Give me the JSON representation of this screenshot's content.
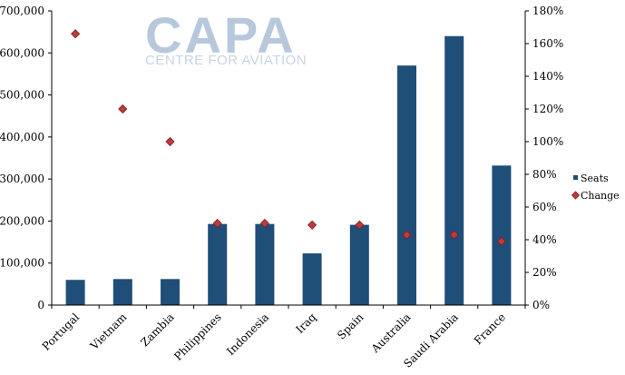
{
  "watermark": {
    "brand": "CAPA",
    "tagline": "CENTRE FOR AVIATION"
  },
  "colors": {
    "bar": "#1f4e79",
    "marker_fill": "#c0393b",
    "marker_stroke": "#7a1f1f",
    "axis": "#000000"
  },
  "chart_data": {
    "type": "bar",
    "categories": [
      "Portugal",
      "Vietnam",
      "Zambia",
      "Philippines",
      "Indonesia",
      "Iraq",
      "Spain",
      "Australia",
      "Saudi Arabia",
      "France"
    ],
    "series": [
      {
        "name": "Seats",
        "type": "bar",
        "axis": "left",
        "values": [
          60000,
          62000,
          62000,
          193000,
          193000,
          123000,
          191000,
          570000,
          640000,
          332000
        ]
      },
      {
        "name": "Change",
        "type": "scatter",
        "axis": "right",
        "values": [
          166,
          120,
          100,
          50,
          50,
          49,
          49,
          43,
          43,
          39
        ]
      }
    ],
    "y_left": {
      "ylim": [
        0,
        700000
      ],
      "ticks": [
        "0",
        "100,000",
        "200,000",
        "300,000",
        "400,000",
        "500,000",
        "600,000",
        "700,000"
      ]
    },
    "y_right": {
      "ylim": [
        0,
        180
      ],
      "ticks": [
        "0%",
        "20%",
        "40%",
        "60%",
        "80%",
        "100%",
        "120%",
        "140%",
        "160%",
        "180%"
      ]
    },
    "legend": {
      "placement": "right",
      "entries": [
        "Seats",
        "Change"
      ]
    },
    "grid": false,
    "title": "",
    "xlabel": "",
    "ylabel": ""
  }
}
